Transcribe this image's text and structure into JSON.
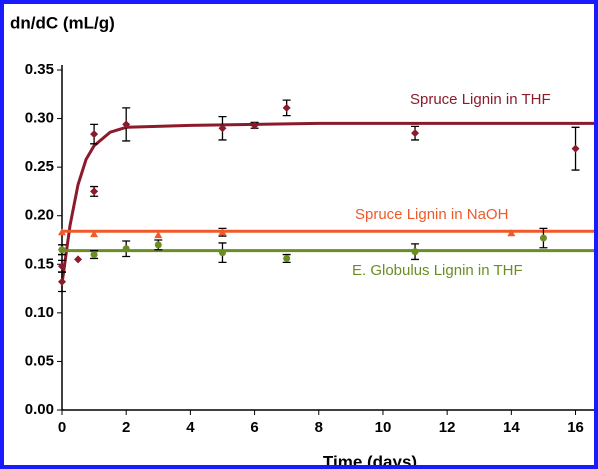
{
  "chart_data": {
    "type": "scatter",
    "y_label": "dn/dC (mL/g)",
    "x_label": "Time (days)",
    "xlim": [
      0,
      16.7
    ],
    "ylim": [
      0,
      0.35
    ],
    "xticks": [
      0,
      2,
      4,
      6,
      8,
      10,
      12,
      14,
      16
    ],
    "yticks": [
      {
        "value": 0,
        "label": "0.00"
      },
      0.05,
      {
        "value": 0.1,
        "label": "0.10"
      },
      0.15,
      {
        "value": 0.2,
        "label": "0.20"
      },
      0.25,
      {
        "value": 0.3,
        "label": "0.30"
      },
      0.35
    ],
    "series": [
      {
        "name": "Spruce Lignin in THF",
        "color": "#8b1a2b",
        "marker": "diamond",
        "x": [
          0,
          0,
          0,
          0.5,
          1,
          1,
          2,
          5,
          6,
          7,
          11,
          16
        ],
        "values": [
          0.132,
          0.148,
          0.165,
          0.155,
          0.284,
          0.225,
          0.294,
          0.29,
          0.293,
          0.311,
          0.285,
          0.269
        ],
        "errors": [
          0.01,
          0.006,
          0.005,
          null,
          0.01,
          0.005,
          0.017,
          0.012,
          0.003,
          0.008,
          0.007,
          0.022
        ],
        "fit": {
          "x": [
            0,
            0.25,
            0.5,
            0.75,
            1,
            1.5,
            2,
            4,
            8,
            16.7
          ],
          "values": [
            0.13,
            0.19,
            0.232,
            0.258,
            0.272,
            0.286,
            0.291,
            0.293,
            0.295,
            0.295
          ]
        }
      },
      {
        "name": "Spruce Lignin in NaOH",
        "color": "#ef5a28",
        "marker": "triangle",
        "x": [
          0,
          1,
          3,
          5,
          14
        ],
        "values": [
          0.183,
          0.181,
          0.18,
          0.183,
          0.182
        ],
        "errors": [
          null,
          null,
          null,
          0.004,
          null
        ],
        "fit": {
          "x": [
            0,
            16.7
          ],
          "values": [
            0.184,
            0.184
          ]
        }
      },
      {
        "name": "E. Globulus Lignin in THF",
        "color": "#6b8e23",
        "marker": "circle",
        "x": [
          0,
          1,
          2,
          3,
          5,
          7,
          11,
          15
        ],
        "values": [
          0.165,
          0.16,
          0.166,
          0.17,
          0.162,
          0.156,
          0.163,
          0.177
        ],
        "errors": [
          0.005,
          0.004,
          0.008,
          0.005,
          0.01,
          0.004,
          0.008,
          0.01
        ],
        "fit": {
          "x": [
            0,
            16.7
          ],
          "values": [
            0.164,
            0.164
          ]
        }
      }
    ]
  }
}
